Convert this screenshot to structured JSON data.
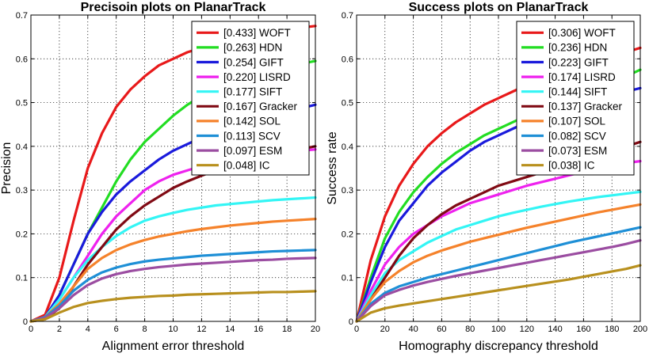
{
  "chart_data": [
    {
      "type": "line",
      "title": "Precisoin plots on PlanarTrack",
      "xlabel": "Alignment error threshold",
      "ylabel": "Precision",
      "xlim": [
        0,
        20
      ],
      "ylim": [
        0,
        0.7
      ],
      "xticks": [
        0,
        2,
        4,
        6,
        8,
        10,
        12,
        14,
        16,
        18,
        20
      ],
      "yticks": [
        0,
        0.1,
        0.2,
        0.3,
        0.4,
        0.5,
        0.6,
        0.7
      ],
      "grid": true,
      "legend_position": "top-right",
      "x": [
        0,
        1,
        2,
        3,
        4,
        5,
        6,
        7,
        8,
        9,
        10,
        11,
        12,
        13,
        14,
        15,
        16,
        17,
        18,
        19,
        20
      ],
      "series": [
        {
          "name": "WOFT",
          "legend_label": "[0.433] WOFT",
          "color": "#e8191a",
          "values": [
            0,
            0.015,
            0.1,
            0.23,
            0.35,
            0.43,
            0.49,
            0.53,
            0.56,
            0.585,
            0.6,
            0.615,
            0.625,
            0.635,
            0.645,
            0.652,
            0.658,
            0.663,
            0.667,
            0.671,
            0.675
          ]
        },
        {
          "name": "HDN",
          "legend_label": "[0.263] HDN",
          "color": "#22dd22",
          "values": [
            0,
            0.01,
            0.06,
            0.13,
            0.2,
            0.26,
            0.32,
            0.37,
            0.41,
            0.44,
            0.47,
            0.495,
            0.515,
            0.53,
            0.545,
            0.555,
            0.565,
            0.575,
            0.582,
            0.589,
            0.595
          ]
        },
        {
          "name": "GIFT",
          "legend_label": "[0.254] GIFT",
          "color": "#1a1adc",
          "values": [
            0,
            0.01,
            0.06,
            0.13,
            0.2,
            0.25,
            0.29,
            0.32,
            0.345,
            0.37,
            0.39,
            0.405,
            0.42,
            0.432,
            0.443,
            0.453,
            0.462,
            0.471,
            0.479,
            0.487,
            0.495
          ]
        },
        {
          "name": "LISRD",
          "legend_label": "[0.220] LISRD",
          "color": "#ee22ee",
          "values": [
            0,
            0.01,
            0.05,
            0.1,
            0.15,
            0.2,
            0.24,
            0.27,
            0.3,
            0.32,
            0.335,
            0.345,
            0.355,
            0.362,
            0.368,
            0.373,
            0.378,
            0.382,
            0.386,
            0.39,
            0.393
          ]
        },
        {
          "name": "SIFT",
          "legend_label": "[0.177] SIFT",
          "color": "#33f5f5",
          "values": [
            0,
            0.01,
            0.05,
            0.1,
            0.14,
            0.17,
            0.195,
            0.215,
            0.23,
            0.24,
            0.248,
            0.255,
            0.26,
            0.265,
            0.268,
            0.271,
            0.274,
            0.277,
            0.279,
            0.281,
            0.283
          ]
        },
        {
          "name": "Gracker",
          "legend_label": "[0.167] Gracker",
          "color": "#800a14",
          "values": [
            0,
            0.005,
            0.03,
            0.08,
            0.13,
            0.17,
            0.21,
            0.24,
            0.265,
            0.285,
            0.305,
            0.32,
            0.333,
            0.345,
            0.355,
            0.365,
            0.373,
            0.381,
            0.388,
            0.394,
            0.4
          ]
        },
        {
          "name": "SOL",
          "legend_label": "[0.142] SOL",
          "color": "#f5822b",
          "values": [
            0,
            0.01,
            0.04,
            0.08,
            0.12,
            0.145,
            0.163,
            0.176,
            0.186,
            0.194,
            0.2,
            0.206,
            0.211,
            0.215,
            0.219,
            0.222,
            0.225,
            0.228,
            0.23,
            0.232,
            0.234
          ]
        },
        {
          "name": "SCV",
          "legend_label": "[0.113] SCV",
          "color": "#1e8fd6",
          "values": [
            0,
            0.01,
            0.035,
            0.07,
            0.095,
            0.112,
            0.123,
            0.131,
            0.137,
            0.141,
            0.144,
            0.147,
            0.15,
            0.152,
            0.154,
            0.156,
            0.158,
            0.16,
            0.161,
            0.162,
            0.163
          ]
        },
        {
          "name": "ESM",
          "legend_label": "[0.097] ESM",
          "color": "#9b4da1",
          "values": [
            0,
            0.008,
            0.03,
            0.06,
            0.083,
            0.098,
            0.108,
            0.115,
            0.12,
            0.124,
            0.127,
            0.13,
            0.132,
            0.134,
            0.136,
            0.138,
            0.14,
            0.141,
            0.143,
            0.144,
            0.145
          ]
        },
        {
          "name": "IC",
          "legend_label": "[0.048] IC",
          "color": "#b8901e",
          "values": [
            0,
            0.005,
            0.02,
            0.033,
            0.042,
            0.047,
            0.051,
            0.054,
            0.056,
            0.058,
            0.059,
            0.061,
            0.062,
            0.063,
            0.064,
            0.065,
            0.066,
            0.067,
            0.067,
            0.068,
            0.069
          ]
        }
      ]
    },
    {
      "type": "line",
      "title": "Success plots on PlanarTrack",
      "xlabel": "Homography discrepancy threshold",
      "ylabel": "Success rate",
      "xlim": [
        0,
        200
      ],
      "ylim": [
        0,
        0.7
      ],
      "xticks": [
        0,
        20,
        40,
        60,
        80,
        100,
        120,
        140,
        160,
        180,
        200
      ],
      "yticks": [
        0,
        0.1,
        0.2,
        0.3,
        0.4,
        0.5,
        0.6,
        0.7
      ],
      "grid": true,
      "legend_position": "top-right",
      "x": [
        0,
        10,
        20,
        30,
        40,
        50,
        60,
        70,
        80,
        90,
        100,
        110,
        120,
        130,
        140,
        150,
        160,
        170,
        180,
        190,
        200
      ],
      "series": [
        {
          "name": "WOFT",
          "legend_label": "[0.306] WOFT",
          "color": "#e8191a",
          "values": [
            0,
            0.14,
            0.24,
            0.31,
            0.36,
            0.4,
            0.43,
            0.455,
            0.475,
            0.495,
            0.51,
            0.525,
            0.54,
            0.55,
            0.565,
            0.575,
            0.585,
            0.595,
            0.605,
            0.615,
            0.625
          ]
        },
        {
          "name": "HDN",
          "legend_label": "[0.236] HDN",
          "color": "#22dd22",
          "values": [
            0,
            0.1,
            0.19,
            0.25,
            0.295,
            0.33,
            0.36,
            0.385,
            0.405,
            0.425,
            0.44,
            0.455,
            0.47,
            0.485,
            0.5,
            0.512,
            0.524,
            0.536,
            0.548,
            0.56,
            0.575
          ]
        },
        {
          "name": "GIFT",
          "legend_label": "[0.223] GIFT",
          "color": "#1a1adc",
          "values": [
            0,
            0.09,
            0.17,
            0.23,
            0.27,
            0.31,
            0.34,
            0.365,
            0.39,
            0.41,
            0.425,
            0.44,
            0.455,
            0.465,
            0.475,
            0.485,
            0.495,
            0.505,
            0.515,
            0.525,
            0.533
          ]
        },
        {
          "name": "LISRD",
          "legend_label": "[0.174] LISRD",
          "color": "#ee22ee",
          "values": [
            0,
            0.07,
            0.13,
            0.17,
            0.2,
            0.22,
            0.24,
            0.255,
            0.27,
            0.28,
            0.29,
            0.3,
            0.31,
            0.318,
            0.326,
            0.334,
            0.342,
            0.35,
            0.357,
            0.362,
            0.366
          ]
        },
        {
          "name": "SIFT",
          "legend_label": "[0.144] SIFT",
          "color": "#33f5f5",
          "values": [
            0,
            0.06,
            0.11,
            0.14,
            0.16,
            0.18,
            0.195,
            0.21,
            0.22,
            0.23,
            0.24,
            0.248,
            0.255,
            0.262,
            0.268,
            0.274,
            0.279,
            0.284,
            0.288,
            0.292,
            0.296
          ]
        },
        {
          "name": "Gracker",
          "legend_label": "[0.137] Gracker",
          "color": "#800a14",
          "values": [
            0,
            0.05,
            0.1,
            0.15,
            0.19,
            0.22,
            0.245,
            0.265,
            0.28,
            0.295,
            0.31,
            0.32,
            0.33,
            0.34,
            0.35,
            0.36,
            0.37,
            0.38,
            0.39,
            0.4,
            0.41
          ]
        },
        {
          "name": "SOL",
          "legend_label": "[0.107] SOL",
          "color": "#f5822b",
          "values": [
            0,
            0.05,
            0.09,
            0.115,
            0.135,
            0.15,
            0.162,
            0.172,
            0.182,
            0.19,
            0.198,
            0.206,
            0.214,
            0.221,
            0.228,
            0.235,
            0.242,
            0.249,
            0.255,
            0.261,
            0.267
          ]
        },
        {
          "name": "SCV",
          "legend_label": "[0.082] SCV",
          "color": "#1e8fd6",
          "values": [
            0,
            0.04,
            0.065,
            0.08,
            0.09,
            0.1,
            0.108,
            0.116,
            0.124,
            0.132,
            0.14,
            0.148,
            0.156,
            0.164,
            0.172,
            0.18,
            0.187,
            0.194,
            0.201,
            0.208,
            0.215
          ]
        },
        {
          "name": "ESM",
          "legend_label": "[0.073] ESM",
          "color": "#9b4da1",
          "values": [
            0,
            0.035,
            0.06,
            0.072,
            0.082,
            0.09,
            0.097,
            0.104,
            0.11,
            0.116,
            0.122,
            0.128,
            0.134,
            0.14,
            0.146,
            0.152,
            0.158,
            0.164,
            0.17,
            0.177,
            0.185
          ]
        },
        {
          "name": "IC",
          "legend_label": "[0.038] IC",
          "color": "#b8901e",
          "values": [
            0,
            0.02,
            0.03,
            0.036,
            0.041,
            0.046,
            0.051,
            0.056,
            0.061,
            0.066,
            0.071,
            0.076,
            0.081,
            0.086,
            0.091,
            0.096,
            0.102,
            0.108,
            0.114,
            0.12,
            0.128
          ]
        }
      ]
    }
  ]
}
